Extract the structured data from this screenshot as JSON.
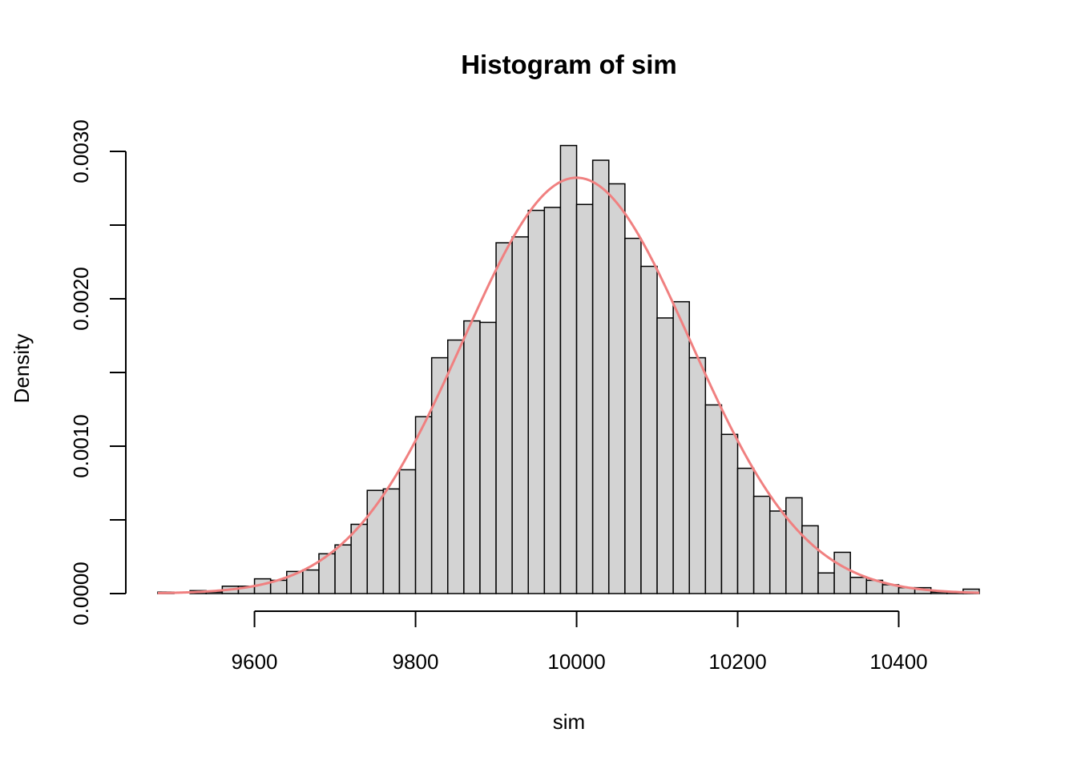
{
  "chart_data": {
    "type": "bar",
    "title": "Histogram of sim",
    "xlabel": "sim",
    "ylabel": "Density",
    "xlim": [
      9480,
      10500
    ],
    "ylim": [
      0,
      0.003
    ],
    "x_ticks": [
      9600,
      9800,
      10000,
      10200,
      10400
    ],
    "x_tick_labels": [
      "9600",
      "9800",
      "10000",
      "10200",
      "10400"
    ],
    "y_ticks": [
      0.0,
      0.0005,
      0.001,
      0.0015,
      0.002,
      0.0025,
      0.003
    ],
    "y_tick_labels": [
      "0.0000",
      "",
      "0.0010",
      "",
      "0.0020",
      "",
      "0.0030"
    ],
    "bin_width": 20,
    "bins_start": [
      9480,
      9500,
      9520,
      9540,
      9560,
      9580,
      9600,
      9620,
      9640,
      9660,
      9680,
      9700,
      9720,
      9740,
      9760,
      9780,
      9800,
      9820,
      9840,
      9860,
      9880,
      9900,
      9920,
      9940,
      9960,
      9980,
      10000,
      10020,
      10040,
      10060,
      10080,
      10100,
      10120,
      10140,
      10160,
      10180,
      10200,
      10220,
      10240,
      10260,
      10280,
      10300,
      10320,
      10340,
      10360,
      10380,
      10400,
      10420,
      10440,
      10460,
      10480
    ],
    "densities": [
      1e-05,
      0.0,
      2e-05,
      1e-05,
      5e-05,
      5e-05,
      0.0001,
      9e-05,
      0.00015,
      0.00016,
      0.00027,
      0.00033,
      0.00047,
      0.0007,
      0.00071,
      0.00084,
      0.0012,
      0.0016,
      0.00172,
      0.00185,
      0.00184,
      0.00238,
      0.00242,
      0.0026,
      0.00262,
      0.00304,
      0.00264,
      0.00294,
      0.00278,
      0.00241,
      0.00222,
      0.00187,
      0.00198,
      0.0016,
      0.00128,
      0.00108,
      0.00085,
      0.00066,
      0.00056,
      0.00065,
      0.00046,
      0.00014,
      0.00028,
      0.00011,
      9e-05,
      6e-05,
      4e-05,
      4e-05,
      1e-05,
      1e-05,
      3e-05
    ],
    "bar_color": "#d3d3d3",
    "bar_border": "#000000",
    "curve": {
      "type": "normal-density",
      "mean": 10000,
      "sd": 141.4,
      "color": "#f08080"
    },
    "grid": false,
    "legend": "none"
  }
}
